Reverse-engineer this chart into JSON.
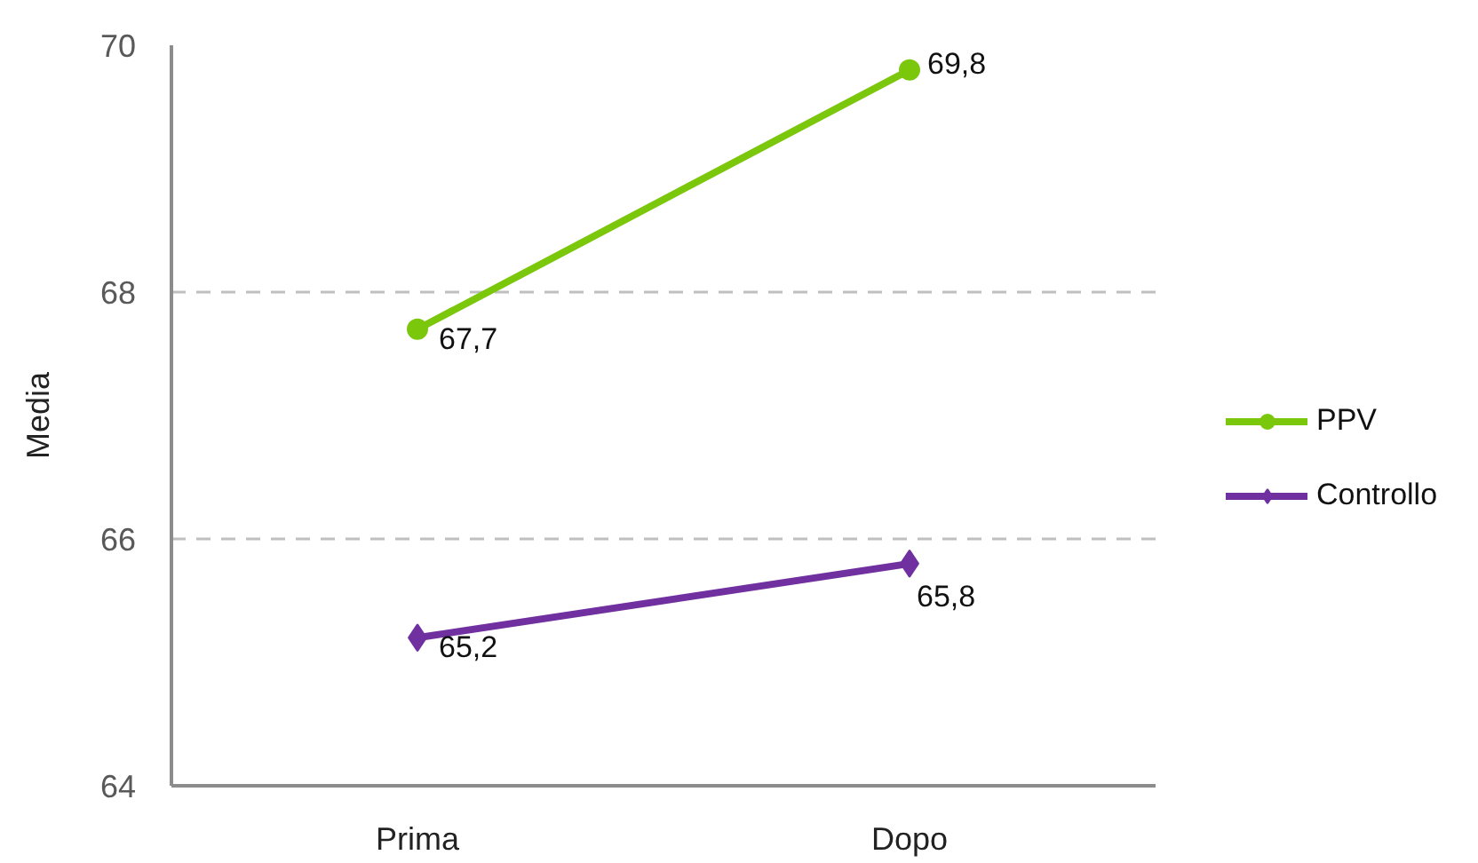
{
  "chart_data": {
    "type": "line",
    "ylabel": "Media",
    "categories": [
      "Prima",
      "Dopo"
    ],
    "series": [
      {
        "name": "PPV",
        "color": "#7ac70c",
        "values": [
          67.7,
          69.8
        ],
        "value_labels": [
          "67,7",
          "69,8"
        ],
        "marker": "circle"
      },
      {
        "name": "Controllo",
        "color": "#7030a0",
        "values": [
          65.2,
          65.8
        ],
        "value_labels": [
          "65,2",
          "65,8"
        ],
        "marker": "diamond"
      }
    ],
    "ylim": [
      64,
      70
    ],
    "yticks": [
      64,
      66,
      68,
      70
    ],
    "grid": "y",
    "legend": "right",
    "line_style": "solid"
  }
}
